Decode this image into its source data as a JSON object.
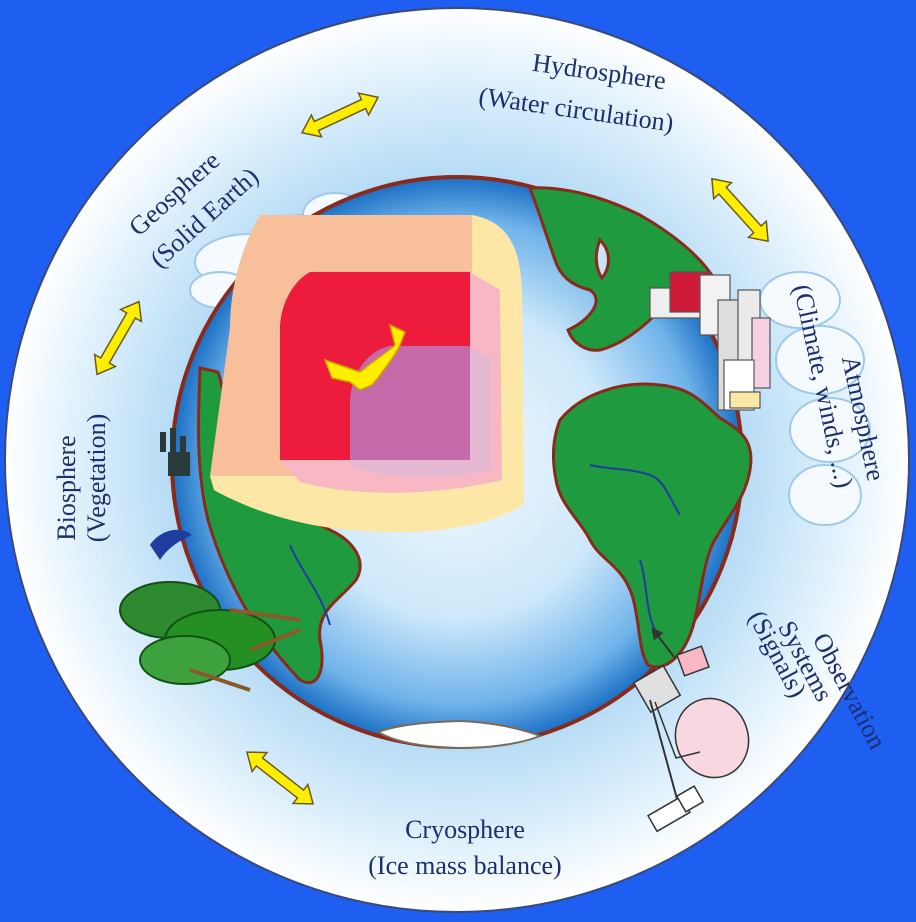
{
  "labels": {
    "hydrosphere_title": "Hydrosphere",
    "hydrosphere_sub": "(Water circulation)",
    "geosphere_title": "Geosphere",
    "geosphere_sub": "(Solid Earth)",
    "atmosphere_title": "Atmosphere",
    "atmosphere_sub": "(Climate, winds, ...)",
    "biosphere_title": "Biosphere",
    "biosphere_sub": "(Vegetation)",
    "cryosphere_title": "Cryosphere",
    "cryosphere_sub": "(Ice mass balance)",
    "observation_title": "Observation",
    "observation_sub1": "Systems",
    "observation_sub2": "(Signals)"
  },
  "colors": {
    "frame_blue": "#1e5ef0",
    "sky_outer": "#ffffff",
    "sky_inner": "#a8d4f2",
    "ocean_center": "#e8f5fd",
    "ocean_edge": "#1b6fc4",
    "land": "#1f9a3e",
    "land_border": "#8a2a1a",
    "crust": "#f7c09a",
    "mantle": "#ee1c3c",
    "outer_core": "#f7b8c4",
    "inner_core": "#c56aa8",
    "crust_side": "#fde7a6",
    "arrow_fill": "#ffee00",
    "label_text": "#1c2f6e"
  }
}
